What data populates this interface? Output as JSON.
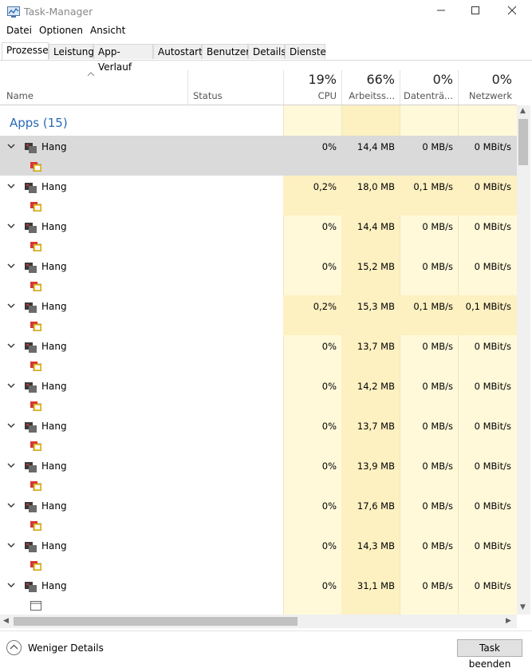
{
  "window": {
    "title": "Task-Manager"
  },
  "menu": [
    "Datei",
    "Optionen",
    "Ansicht"
  ],
  "tabs": [
    {
      "label": "Prozesse",
      "active": true
    },
    {
      "label": "Leistung"
    },
    {
      "label": "App-Verlauf"
    },
    {
      "label": "Autostart"
    },
    {
      "label": "Benutzer"
    },
    {
      "label": "Details"
    },
    {
      "label": "Dienste"
    }
  ],
  "columns": {
    "name": "Name",
    "status": "Status",
    "cpu": {
      "pct": "19%",
      "label": "CPU"
    },
    "memory": {
      "pct": "66%",
      "label": "Arbeitss..."
    },
    "disk": {
      "pct": "0%",
      "label": "Datenträ..."
    },
    "network": {
      "pct": "0%",
      "label": "Netzwerk"
    }
  },
  "group": {
    "title": "Apps (15)"
  },
  "rows": [
    {
      "name": "Hang",
      "cpu": "0%",
      "mem": "14,4 MB",
      "disk": "0 MB/s",
      "net": "0 MBit/s",
      "selected": true
    },
    {
      "name": "Hang",
      "cpu": "0,2%",
      "mem": "18,0 MB",
      "disk": "0,1 MB/s",
      "net": "0 MBit/s"
    },
    {
      "name": "Hang",
      "cpu": "0%",
      "mem": "14,4 MB",
      "disk": "0 MB/s",
      "net": "0 MBit/s"
    },
    {
      "name": "Hang",
      "cpu": "0%",
      "mem": "15,2 MB",
      "disk": "0 MB/s",
      "net": "0 MBit/s"
    },
    {
      "name": "Hang",
      "cpu": "0,2%",
      "mem": "15,3 MB",
      "disk": "0,1 MB/s",
      "net": "0,1 MBit/s"
    },
    {
      "name": "Hang",
      "cpu": "0%",
      "mem": "13,7 MB",
      "disk": "0 MB/s",
      "net": "0 MBit/s"
    },
    {
      "name": "Hang",
      "cpu": "0%",
      "mem": "14,2 MB",
      "disk": "0 MB/s",
      "net": "0 MBit/s"
    },
    {
      "name": "Hang",
      "cpu": "0%",
      "mem": "13,7 MB",
      "disk": "0 MB/s",
      "net": "0 MBit/s"
    },
    {
      "name": "Hang",
      "cpu": "0%",
      "mem": "13,9 MB",
      "disk": "0 MB/s",
      "net": "0 MBit/s"
    },
    {
      "name": "Hang",
      "cpu": "0%",
      "mem": "17,6 MB",
      "disk": "0 MB/s",
      "net": "0 MBit/s"
    },
    {
      "name": "Hang",
      "cpu": "0%",
      "mem": "14,3 MB",
      "disk": "0 MB/s",
      "net": "0 MBit/s"
    },
    {
      "name": "Hang",
      "cpu": "0%",
      "mem": "31,1 MB",
      "disk": "0 MB/s",
      "net": "0 MBit/s",
      "subicon": "window-icon"
    }
  ],
  "footer": {
    "less_details": "Weniger Details",
    "end_task": "Task beenden"
  },
  "colors": {
    "accent": "#2a6ab7",
    "heat_light": "#fff9d9",
    "heat_mid": "#fdf0c1",
    "heat_strong": "#f9ebb0",
    "selected": "#dadada"
  }
}
